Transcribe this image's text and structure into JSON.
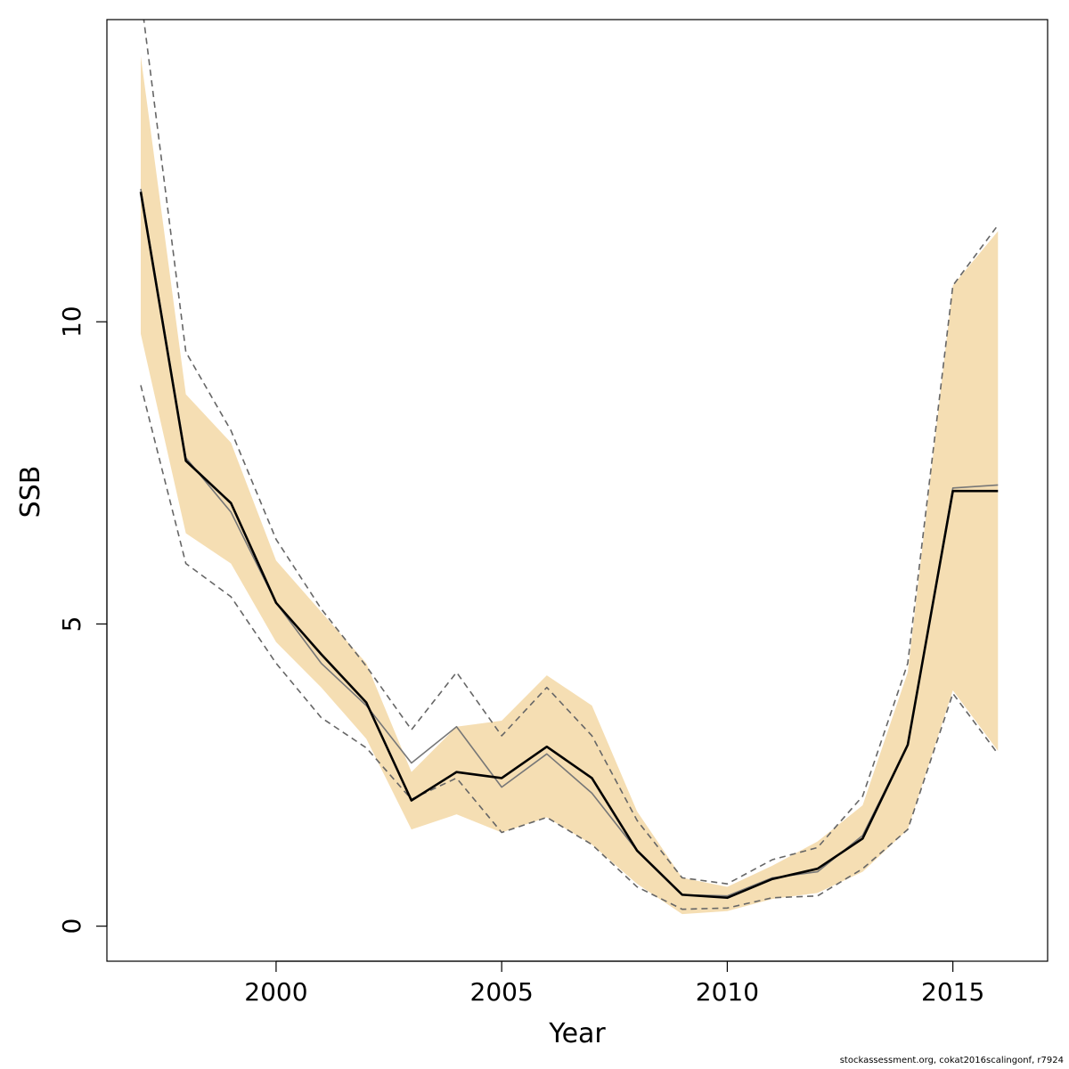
{
  "chart_data": {
    "type": "line",
    "xlabel": "Year",
    "ylabel": "SSB",
    "xlim": [
      1996.25,
      2017.1
    ],
    "ylim": [
      -0.58,
      15.0
    ],
    "x_ticks": [
      2000,
      2005,
      2010,
      2015
    ],
    "y_ticks": [
      0,
      5,
      10
    ],
    "x": [
      1997,
      1998,
      1999,
      2000,
      2001,
      2002,
      2003,
      2004,
      2005,
      2006,
      2007,
      2008,
      2009,
      2010,
      2011,
      2012,
      2013,
      2014,
      2015,
      2016
    ],
    "band_color": "#f5deb3",
    "band_upper": [
      14.4,
      8.8,
      8.0,
      6.05,
      5.2,
      4.35,
      2.55,
      3.3,
      3.4,
      4.15,
      3.65,
      1.9,
      0.8,
      0.65,
      1.0,
      1.4,
      2.0,
      4.2,
      10.6,
      11.5
    ],
    "band_lower": [
      9.8,
      6.5,
      6.0,
      4.7,
      3.95,
      3.1,
      1.6,
      1.85,
      1.55,
      1.8,
      1.35,
      0.7,
      0.2,
      0.25,
      0.45,
      0.55,
      0.9,
      1.6,
      3.9,
      2.9
    ],
    "series": [
      {
        "style": "thick-solid",
        "color": "#000000",
        "values": [
          12.15,
          7.7,
          7.0,
          5.35,
          4.5,
          3.7,
          2.08,
          2.55,
          2.45,
          2.97,
          2.45,
          1.25,
          0.52,
          0.47,
          0.78,
          0.95,
          1.45,
          3.0,
          7.2,
          7.2
        ]
      },
      {
        "style": "thin-solid",
        "color": "#777777",
        "values": [
          12.2,
          7.75,
          6.85,
          5.35,
          4.35,
          3.65,
          2.7,
          3.3,
          2.3,
          2.85,
          2.2,
          1.25,
          0.52,
          0.5,
          0.8,
          0.9,
          1.5,
          3.0,
          7.25,
          7.3
        ]
      },
      {
        "style": "dashed-upper",
        "color": "#666666",
        "values": [
          15.4,
          9.5,
          8.2,
          6.4,
          5.25,
          4.3,
          3.25,
          4.2,
          3.15,
          3.95,
          3.15,
          1.75,
          0.8,
          0.7,
          1.1,
          1.3,
          2.15,
          4.35,
          10.6,
          11.6
        ]
      },
      {
        "style": "dashed-lower",
        "color": "#666666",
        "values": [
          8.95,
          6.0,
          5.45,
          4.35,
          3.45,
          2.95,
          2.1,
          2.45,
          1.55,
          1.8,
          1.35,
          0.65,
          0.28,
          0.3,
          0.47,
          0.5,
          0.95,
          1.6,
          3.85,
          2.85
        ]
      }
    ]
  },
  "footer_text": "stockassessment.org, cokat2016scalingonf, r7924"
}
